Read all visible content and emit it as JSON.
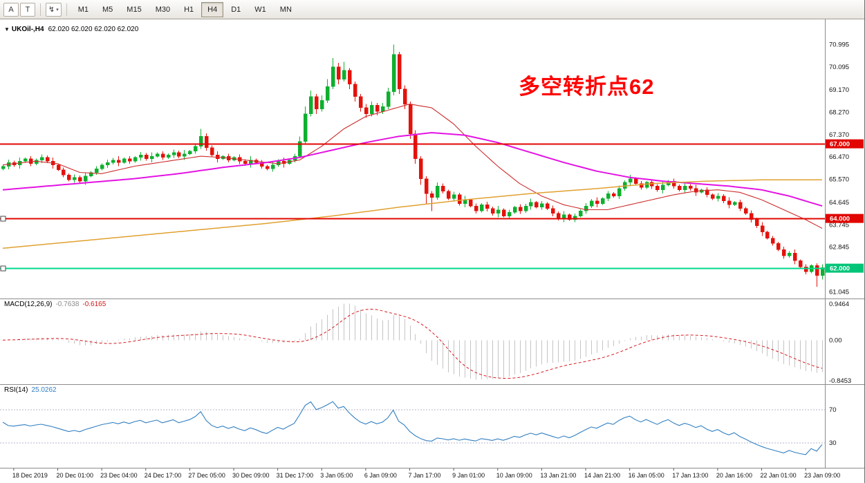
{
  "toolbar": {
    "tools": [
      {
        "name": "text-label-tool",
        "glyph": "A"
      },
      {
        "name": "text-tool",
        "glyph": "T"
      }
    ],
    "dropdown_tool": {
      "glyph": "↯",
      "caret": "▾"
    },
    "timeframes": [
      "M1",
      "M5",
      "M15",
      "M30",
      "H1",
      "H4",
      "D1",
      "W1",
      "MN"
    ],
    "active_timeframe": "H4"
  },
  "chart": {
    "marker": "▼",
    "symbol_label": "UKOil-,H4",
    "ohlc_label": "62.020 62.020 62.020 62.020",
    "annotation": {
      "text": "多空转折点62",
      "color": "#ff0000"
    },
    "price_axis_labels": [
      "70.995",
      "70.095",
      "69.170",
      "68.270",
      "67.370",
      "66.470",
      "65.570",
      "64.645",
      "63.745",
      "62.845",
      "61.945",
      "61.045"
    ],
    "hlines": [
      {
        "price": 67.0,
        "label": "67.000",
        "color": "#e10600",
        "tag_bg": "#e10600",
        "handle": false
      },
      {
        "price": 64.0,
        "label": "64.000",
        "color": "#e10600",
        "tag_bg": "#e10600",
        "handle": true
      },
      {
        "price": 62.0,
        "label": "62.000",
        "color": "#00d98b",
        "tag_bg": "#00c478",
        "handle": true
      }
    ],
    "time_axis_labels": [
      "18 Dec 2019",
      "20 Dec 01:00",
      "23 Dec 04:00",
      "24 Dec 17:00",
      "27 Dec 05:00",
      "30 Dec 09:00",
      "31 Dec 17:00",
      "3 Jan 05:00",
      "6 Jan 09:00",
      "7 Jan 17:00",
      "9 Jan 01:00",
      "10 Jan 09:00",
      "13 Jan 21:00",
      "14 Jan 21:00",
      "16 Jan 05:00",
      "17 Jan 13:00",
      "20 Jan 16:00",
      "22 Jan 01:00",
      "23 Jan 09:00"
    ]
  },
  "chart_data": {
    "type": "candlestick",
    "symbol": "UKOil-",
    "timeframe": "H4",
    "price_range": [
      60.78,
      71.95
    ],
    "colors": {
      "up": "#0faf2f",
      "down": "#e3120b",
      "background": "#ffffff"
    },
    "candles": [
      [
        66.0,
        66.16,
        65.94,
        66.1
      ],
      [
        66.1,
        66.37,
        65.98,
        66.25
      ],
      [
        66.25,
        66.33,
        66.07,
        66.15
      ],
      [
        66.15,
        66.45,
        66.0,
        66.3
      ],
      [
        66.3,
        66.45,
        66.25,
        66.4
      ],
      [
        66.4,
        66.5,
        66.1,
        66.2
      ],
      [
        66.2,
        66.41,
        66.14,
        66.35
      ],
      [
        66.35,
        66.57,
        66.23,
        66.45
      ],
      [
        66.45,
        66.53,
        66.22,
        66.3
      ],
      [
        66.3,
        66.45,
        66.0,
        66.15
      ],
      [
        66.15,
        66.2,
        65.9,
        65.95
      ],
      [
        65.95,
        66.05,
        65.65,
        65.75
      ],
      [
        65.75,
        65.81,
        65.49,
        65.55
      ],
      [
        65.55,
        65.77,
        65.43,
        65.65
      ],
      [
        65.65,
        65.73,
        65.42,
        65.5
      ],
      [
        65.5,
        65.85,
        65.35,
        65.7
      ],
      [
        65.7,
        65.9,
        65.65,
        65.85
      ],
      [
        65.85,
        66.1,
        65.75,
        66.0
      ],
      [
        66.0,
        66.21,
        65.94,
        66.15
      ],
      [
        66.15,
        66.37,
        66.03,
        66.25
      ],
      [
        66.25,
        66.43,
        66.17,
        66.35
      ],
      [
        66.35,
        66.5,
        66.1,
        66.25
      ],
      [
        66.25,
        66.45,
        66.2,
        66.4
      ],
      [
        66.4,
        66.5,
        66.2,
        66.3
      ],
      [
        66.3,
        66.51,
        66.24,
        66.45
      ],
      [
        66.45,
        66.67,
        66.33,
        66.55
      ],
      [
        66.55,
        66.63,
        66.32,
        66.4
      ],
      [
        66.4,
        66.65,
        66.25,
        66.5
      ],
      [
        66.5,
        66.65,
        66.45,
        66.6
      ],
      [
        66.6,
        66.7,
        66.35,
        66.45
      ],
      [
        66.45,
        66.61,
        66.39,
        66.55
      ],
      [
        66.55,
        66.77,
        66.43,
        66.65
      ],
      [
        66.65,
        66.73,
        66.42,
        66.5
      ],
      [
        66.5,
        66.75,
        66.35,
        66.6
      ],
      [
        66.6,
        66.75,
        66.55,
        66.7
      ],
      [
        66.7,
        67.0,
        66.6,
        66.9
      ],
      [
        66.9,
        67.6,
        66.8,
        67.3
      ],
      [
        67.3,
        67.42,
        66.73,
        66.85
      ],
      [
        66.85,
        66.93,
        66.47,
        66.55
      ],
      [
        66.55,
        66.7,
        66.25,
        66.4
      ],
      [
        66.4,
        66.55,
        66.35,
        66.5
      ],
      [
        66.5,
        66.6,
        66.25,
        66.35
      ],
      [
        66.35,
        66.51,
        66.29,
        66.45
      ],
      [
        66.45,
        66.57,
        66.18,
        66.3
      ],
      [
        66.3,
        66.38,
        66.12,
        66.2
      ],
      [
        66.2,
        66.5,
        66.05,
        66.35
      ],
      [
        66.35,
        66.4,
        66.2,
        66.25
      ],
      [
        66.25,
        66.35,
        66.0,
        66.1
      ],
      [
        66.1,
        66.16,
        65.94,
        66.0
      ],
      [
        66.0,
        66.27,
        65.88,
        66.15
      ],
      [
        66.15,
        66.38,
        66.07,
        66.3
      ],
      [
        66.3,
        66.45,
        66.05,
        66.2
      ],
      [
        66.2,
        66.4,
        66.15,
        66.35
      ],
      [
        66.35,
        66.6,
        66.25,
        66.5
      ],
      [
        66.5,
        67.3,
        66.45,
        67.1
      ],
      [
        67.1,
        68.5,
        67.0,
        68.2
      ],
      [
        68.2,
        69.15,
        68.1,
        68.9
      ],
      [
        68.9,
        69.0,
        68.2,
        68.4
      ],
      [
        68.4,
        68.95,
        68.3,
        68.75
      ],
      [
        68.75,
        69.6,
        68.65,
        69.3
      ],
      [
        69.3,
        70.45,
        69.2,
        70.1
      ],
      [
        70.1,
        70.25,
        69.4,
        69.6
      ],
      [
        69.6,
        70.3,
        69.5,
        69.95
      ],
      [
        69.95,
        70.05,
        69.2,
        69.4
      ],
      [
        69.4,
        69.5,
        68.7,
        68.9
      ],
      [
        68.9,
        69.0,
        68.3,
        68.45
      ],
      [
        68.45,
        68.6,
        68.05,
        68.2
      ],
      [
        68.2,
        68.7,
        68.1,
        68.55
      ],
      [
        68.55,
        68.65,
        68.15,
        68.3
      ],
      [
        68.3,
        68.65,
        68.2,
        68.5
      ],
      [
        68.5,
        69.25,
        68.4,
        69.1
      ],
      [
        69.1,
        70.99,
        68.95,
        70.6
      ],
      [
        70.6,
        70.7,
        69.0,
        69.2
      ],
      [
        69.2,
        69.35,
        68.4,
        68.6
      ],
      [
        68.6,
        68.7,
        67.2,
        67.4
      ],
      [
        67.4,
        67.55,
        66.2,
        66.4
      ],
      [
        66.4,
        66.5,
        65.35,
        65.6
      ],
      [
        65.6,
        65.7,
        64.6,
        65.0
      ],
      [
        65.0,
        65.1,
        64.3,
        64.85
      ],
      [
        64.85,
        65.45,
        64.75,
        65.3
      ],
      [
        65.3,
        65.4,
        65.0,
        65.1
      ],
      [
        65.1,
        65.16,
        64.74,
        64.8
      ],
      [
        64.8,
        65.07,
        64.68,
        64.95
      ],
      [
        64.95,
        65.03,
        64.52,
        64.6
      ],
      [
        64.6,
        64.9,
        64.45,
        64.75
      ],
      [
        64.75,
        64.8,
        64.45,
        64.5
      ],
      [
        64.5,
        64.6,
        64.2,
        64.3
      ],
      [
        64.3,
        64.61,
        64.24,
        64.55
      ],
      [
        64.55,
        64.67,
        64.28,
        64.4
      ],
      [
        64.4,
        64.48,
        64.12,
        64.2
      ],
      [
        64.2,
        64.5,
        64.05,
        64.35
      ],
      [
        64.35,
        64.4,
        64.05,
        64.1
      ],
      [
        64.1,
        64.35,
        64.0,
        64.25
      ],
      [
        64.25,
        64.51,
        64.19,
        64.45
      ],
      [
        64.45,
        64.57,
        64.18,
        64.3
      ],
      [
        64.3,
        64.58,
        64.22,
        64.5
      ],
      [
        64.5,
        64.8,
        64.35,
        64.65
      ],
      [
        64.65,
        64.7,
        64.4,
        64.45
      ],
      [
        64.45,
        64.7,
        64.35,
        64.6
      ],
      [
        64.6,
        64.66,
        64.34,
        64.4
      ],
      [
        64.4,
        64.52,
        64.08,
        64.2
      ],
      [
        64.2,
        64.28,
        63.92,
        64.0
      ],
      [
        64.0,
        64.3,
        63.85,
        64.15
      ],
      [
        64.15,
        64.2,
        63.9,
        63.95
      ],
      [
        63.95,
        64.2,
        63.85,
        64.1
      ],
      [
        64.1,
        64.36,
        64.04,
        64.3
      ],
      [
        64.3,
        64.62,
        64.18,
        64.5
      ],
      [
        64.5,
        64.78,
        64.42,
        64.7
      ],
      [
        64.7,
        64.85,
        64.45,
        64.6
      ],
      [
        64.6,
        64.85,
        64.55,
        64.8
      ],
      [
        64.8,
        65.1,
        64.7,
        65.0
      ],
      [
        65.0,
        65.06,
        64.84,
        64.9
      ],
      [
        64.9,
        65.32,
        64.78,
        65.2
      ],
      [
        65.2,
        65.53,
        65.12,
        65.45
      ],
      [
        65.45,
        65.75,
        65.3,
        65.6
      ],
      [
        65.6,
        65.65,
        65.35,
        65.4
      ],
      [
        65.4,
        65.5,
        65.15,
        65.25
      ],
      [
        65.25,
        65.51,
        65.19,
        65.45
      ],
      [
        65.45,
        65.57,
        65.18,
        65.3
      ],
      [
        65.3,
        65.38,
        65.07,
        65.15
      ],
      [
        65.15,
        65.5,
        65.0,
        65.35
      ],
      [
        65.35,
        65.55,
        65.3,
        65.5
      ],
      [
        65.5,
        65.6,
        65.2,
        65.3
      ],
      [
        65.3,
        65.36,
        65.09,
        65.15
      ],
      [
        65.15,
        65.42,
        65.03,
        65.3
      ],
      [
        65.3,
        65.38,
        65.12,
        65.2
      ],
      [
        65.2,
        65.35,
        64.9,
        65.05
      ],
      [
        65.05,
        65.2,
        65.0,
        65.15
      ],
      [
        65.15,
        65.25,
        64.85,
        64.95
      ],
      [
        64.95,
        65.01,
        64.74,
        64.8
      ],
      [
        64.8,
        65.02,
        64.68,
        64.9
      ],
      [
        64.9,
        64.98,
        64.62,
        64.7
      ],
      [
        64.7,
        64.85,
        64.4,
        64.55
      ],
      [
        64.55,
        64.7,
        64.5,
        64.65
      ],
      [
        64.65,
        64.75,
        64.3,
        64.4
      ],
      [
        64.4,
        64.46,
        64.14,
        64.2
      ],
      [
        64.2,
        64.32,
        63.83,
        63.95
      ],
      [
        63.95,
        64.03,
        63.62,
        63.7
      ],
      [
        63.7,
        63.85,
        63.3,
        63.45
      ],
      [
        63.45,
        63.5,
        63.15,
        63.2
      ],
      [
        63.2,
        63.3,
        62.9,
        63.0
      ],
      [
        63.0,
        63.06,
        62.69,
        62.75
      ],
      [
        62.75,
        62.87,
        62.38,
        62.5
      ],
      [
        62.5,
        62.68,
        62.42,
        62.6
      ],
      [
        62.6,
        62.75,
        62.15,
        62.3
      ],
      [
        62.3,
        62.35,
        62.0,
        62.05
      ],
      [
        62.05,
        62.15,
        61.75,
        61.85
      ],
      [
        61.85,
        62.16,
        61.79,
        62.1
      ],
      [
        62.1,
        62.2,
        61.25,
        61.7
      ],
      [
        61.7,
        62.15,
        61.55,
        62.02
      ]
    ],
    "overlays": [
      {
        "name": "ma-red",
        "color": "#cc2a2a",
        "width": 1.1,
        "points": [
          [
            0,
            66.15
          ],
          [
            6,
            66.3
          ],
          [
            10,
            66.2
          ],
          [
            14,
            65.85
          ],
          [
            18,
            65.8
          ],
          [
            24,
            66.1
          ],
          [
            30,
            66.3
          ],
          [
            36,
            66.5
          ],
          [
            40,
            66.45
          ],
          [
            46,
            66.3
          ],
          [
            50,
            66.2
          ],
          [
            54,
            66.35
          ],
          [
            58,
            66.9
          ],
          [
            62,
            67.6
          ],
          [
            66,
            68.1
          ],
          [
            70,
            68.35
          ],
          [
            74,
            68.6
          ],
          [
            78,
            68.45
          ],
          [
            82,
            67.8
          ],
          [
            86,
            66.9
          ],
          [
            90,
            66.1
          ],
          [
            94,
            65.4
          ],
          [
            98,
            64.9
          ],
          [
            102,
            64.55
          ],
          [
            106,
            64.35
          ],
          [
            110,
            64.35
          ],
          [
            114,
            64.55
          ],
          [
            118,
            64.75
          ],
          [
            122,
            64.95
          ],
          [
            126,
            65.1
          ],
          [
            130,
            65.15
          ],
          [
            134,
            65.05
          ],
          [
            138,
            64.75
          ],
          [
            142,
            64.35
          ],
          [
            146,
            63.95
          ],
          [
            149,
            63.6
          ]
        ]
      },
      {
        "name": "ma-magenta",
        "color": "#e312e3",
        "width": 2,
        "points": [
          [
            0,
            65.15
          ],
          [
            8,
            65.3
          ],
          [
            16,
            65.45
          ],
          [
            24,
            65.6
          ],
          [
            32,
            65.8
          ],
          [
            40,
            66.05
          ],
          [
            48,
            66.25
          ],
          [
            54,
            66.45
          ],
          [
            60,
            66.75
          ],
          [
            66,
            67.05
          ],
          [
            72,
            67.3
          ],
          [
            78,
            67.45
          ],
          [
            84,
            67.35
          ],
          [
            90,
            67.05
          ],
          [
            96,
            66.65
          ],
          [
            102,
            66.25
          ],
          [
            108,
            65.9
          ],
          [
            114,
            65.65
          ],
          [
            120,
            65.5
          ],
          [
            126,
            65.4
          ],
          [
            132,
            65.3
          ],
          [
            138,
            65.15
          ],
          [
            143,
            64.9
          ],
          [
            149,
            64.5
          ]
        ]
      },
      {
        "name": "ma-orange",
        "color": "#e0a030",
        "width": 1.5,
        "points": [
          [
            0,
            62.8
          ],
          [
            12,
            63.05
          ],
          [
            24,
            63.3
          ],
          [
            36,
            63.55
          ],
          [
            48,
            63.8
          ],
          [
            60,
            64.1
          ],
          [
            72,
            64.45
          ],
          [
            84,
            64.75
          ],
          [
            96,
            65.0
          ],
          [
            108,
            65.2
          ],
          [
            118,
            65.4
          ],
          [
            128,
            65.5
          ],
          [
            138,
            65.55
          ],
          [
            149,
            65.55
          ]
        ]
      }
    ],
    "indicators": {
      "macd": {
        "label": "MACD(12,26,9)",
        "params": [
          12,
          26,
          9
        ],
        "value_main": "-0.7638",
        "value_signal": "-0.6165",
        "axis_labels": [
          "0.9464",
          "0.00",
          "-0.8453"
        ],
        "histogram_color": "#c4c4c4",
        "signal_color": "#d71920"
      },
      "rsi": {
        "label": "RSI(14)",
        "period": 14,
        "value": "25.0262",
        "levels": [
          70,
          30
        ],
        "level_labels": [
          "70",
          "30"
        ],
        "color": "#2f7ec1",
        "level_color": "#b3b3cc"
      }
    }
  }
}
